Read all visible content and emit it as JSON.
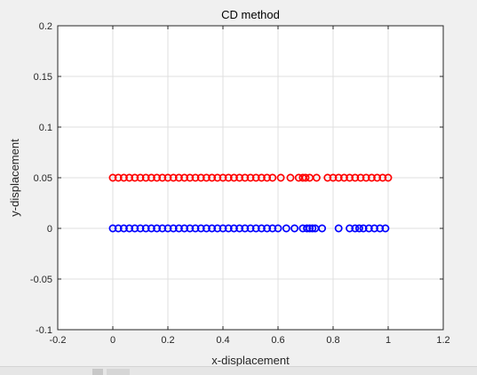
{
  "chart_data": {
    "type": "scatter",
    "title": "CD method",
    "xlabel": "x-displacement",
    "ylabel": "y-displacement",
    "xlim": [
      -0.2,
      1.2
    ],
    "ylim": [
      -0.1,
      0.2
    ],
    "x_ticks": [
      "-0.2",
      "0",
      "0.2",
      "0.4",
      "0.6",
      "0.8",
      "1",
      "1.2"
    ],
    "y_ticks": [
      "-0.1",
      "-0.05",
      "0",
      "0.05",
      "0.1",
      "0.15",
      "0.2"
    ],
    "grid": true,
    "marker": "circle-open",
    "series": [
      {
        "color": "#ff0000",
        "x": [
          0,
          0.02,
          0.04,
          0.06,
          0.08,
          0.1,
          0.12,
          0.14,
          0.16,
          0.18,
          0.2,
          0.22,
          0.24,
          0.26,
          0.28,
          0.3,
          0.32,
          0.34,
          0.36,
          0.38,
          0.4,
          0.42,
          0.44,
          0.46,
          0.48,
          0.5,
          0.52,
          0.54,
          0.56,
          0.58,
          0.61,
          0.645,
          0.675,
          0.69,
          0.7,
          0.715,
          0.74,
          0.78,
          0.8,
          0.82,
          0.84,
          0.86,
          0.88,
          0.9,
          0.92,
          0.94,
          0.96,
          0.98,
          1.0
        ],
        "y": [
          0.05,
          0.05,
          0.05,
          0.05,
          0.05,
          0.05,
          0.05,
          0.05,
          0.05,
          0.05,
          0.05,
          0.05,
          0.05,
          0.05,
          0.05,
          0.05,
          0.05,
          0.05,
          0.05,
          0.05,
          0.05,
          0.05,
          0.05,
          0.05,
          0.05,
          0.05,
          0.05,
          0.05,
          0.05,
          0.05,
          0.05,
          0.05,
          0.05,
          0.05,
          0.05,
          0.05,
          0.05,
          0.05,
          0.05,
          0.05,
          0.05,
          0.05,
          0.05,
          0.05,
          0.05,
          0.05,
          0.05,
          0.05,
          0.05
        ]
      },
      {
        "color": "#0000ff",
        "x": [
          0,
          0.02,
          0.04,
          0.06,
          0.08,
          0.1,
          0.12,
          0.14,
          0.16,
          0.18,
          0.2,
          0.22,
          0.24,
          0.26,
          0.28,
          0.3,
          0.32,
          0.34,
          0.36,
          0.38,
          0.4,
          0.42,
          0.44,
          0.46,
          0.48,
          0.5,
          0.52,
          0.54,
          0.56,
          0.58,
          0.6,
          0.63,
          0.66,
          0.69,
          0.705,
          0.715,
          0.725,
          0.735,
          0.76,
          0.82,
          0.86,
          0.88,
          0.895,
          0.91,
          0.93,
          0.95,
          0.97,
          0.99
        ],
        "y": [
          0,
          0,
          0,
          0,
          0,
          0,
          0,
          0,
          0,
          0,
          0,
          0,
          0,
          0,
          0,
          0,
          0,
          0,
          0,
          0,
          0,
          0,
          0,
          0,
          0,
          0,
          0,
          0,
          0,
          0,
          0,
          0,
          0,
          0,
          0,
          0,
          0,
          0,
          0,
          0,
          0,
          0,
          0,
          0,
          0,
          0,
          0,
          0
        ]
      }
    ]
  },
  "colors": {
    "window_background": "#f0f0f0",
    "axes_background": "#ffffff",
    "axis_color": "#262626",
    "grid_color": "#dfdfdf"
  }
}
